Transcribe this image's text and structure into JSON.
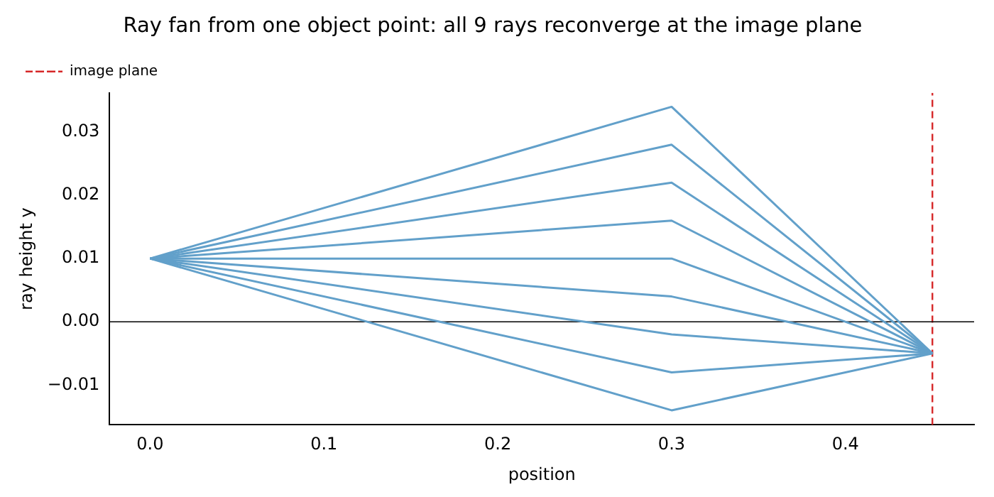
{
  "chart_data": {
    "type": "line",
    "title": "Ray fan from one object point: all 9 rays reconverge at the image plane",
    "xlabel": "position",
    "ylabel": "ray height y",
    "series": [
      {
        "color": "#62a0ca",
        "x": [
          0,
          0.3,
          0.45
        ],
        "values": [
          0.01,
          0.034,
          -0.005
        ]
      },
      {
        "color": "#62a0ca",
        "x": [
          0,
          0.3,
          0.45
        ],
        "values": [
          0.01,
          0.028,
          -0.005
        ]
      },
      {
        "color": "#62a0ca",
        "x": [
          0,
          0.3,
          0.45
        ],
        "values": [
          0.01,
          0.022,
          -0.005
        ]
      },
      {
        "color": "#62a0ca",
        "x": [
          0,
          0.3,
          0.45
        ],
        "values": [
          0.01,
          0.016,
          -0.005
        ]
      },
      {
        "color": "#62a0ca",
        "x": [
          0,
          0.3,
          0.45
        ],
        "values": [
          0.01,
          0.01,
          -0.005
        ]
      },
      {
        "color": "#62a0ca",
        "x": [
          0,
          0.3,
          0.45
        ],
        "values": [
          0.01,
          0.004,
          -0.005
        ]
      },
      {
        "color": "#62a0ca",
        "x": [
          0,
          0.3,
          0.45
        ],
        "values": [
          0.01,
          -0.002,
          -0.005
        ]
      },
      {
        "color": "#62a0ca",
        "x": [
          0,
          0.3,
          0.45
        ],
        "values": [
          0.01,
          -0.008,
          -0.005
        ]
      },
      {
        "color": "#62a0ca",
        "x": [
          0,
          0.3,
          0.45
        ],
        "values": [
          0.01,
          -0.014,
          -0.005
        ]
      }
    ],
    "ref_lines": [
      {
        "axis": "y",
        "value": 0,
        "color": "#000000",
        "line_style": "solid"
      },
      {
        "axis": "x",
        "value": 0.45,
        "label": "image plane",
        "color": "#d62728",
        "line_style": "dashed"
      }
    ],
    "xlim": [
      -0.0233,
      0.474
    ],
    "ylim": [
      -0.0163,
      0.0362
    ],
    "xticks": [
      {
        "value": 0,
        "label": "0.0"
      },
      {
        "value": 0.1,
        "label": "0.1"
      },
      {
        "value": 0.2,
        "label": "0.2"
      },
      {
        "value": 0.3,
        "label": "0.3"
      },
      {
        "value": 0.4,
        "label": "0.4"
      }
    ],
    "yticks": [
      {
        "value": -0.01,
        "label": "−0.01"
      },
      {
        "value": 0,
        "label": "0.00"
      },
      {
        "value": 0.01,
        "label": "0.01"
      },
      {
        "value": 0.02,
        "label": "0.02"
      },
      {
        "value": 0.03,
        "label": "0.03"
      }
    ],
    "grid": false,
    "legend": "top left",
    "marker": "none",
    "line_style": "solid"
  }
}
